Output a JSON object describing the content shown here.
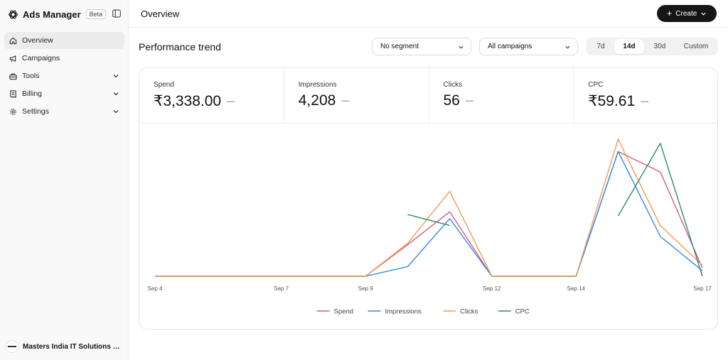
{
  "sidebar": {
    "brand": {
      "name": "Ads Manager",
      "badge": "Beta"
    },
    "items": [
      {
        "label": "Overview",
        "icon": "home-icon",
        "active": true,
        "expandable": false
      },
      {
        "label": "Campaigns",
        "icon": "megaphone-icon",
        "active": false,
        "expandable": false
      },
      {
        "label": "Tools",
        "icon": "toolbox-icon",
        "active": false,
        "expandable": true
      },
      {
        "label": "Billing",
        "icon": "receipt-icon",
        "active": false,
        "expandable": true
      },
      {
        "label": "Settings",
        "icon": "gear-icon",
        "active": false,
        "expandable": true
      }
    ],
    "org": {
      "name": "Masters India IT Solutions Pri..."
    }
  },
  "header": {
    "title": "Overview",
    "create_label": "Create"
  },
  "section": {
    "title": "Performance trend",
    "segment_select": "No segment",
    "campaign_select": "All campaigns",
    "ranges": [
      {
        "label": "7d",
        "active": false
      },
      {
        "label": "14d",
        "active": true
      },
      {
        "label": "30d",
        "active": false
      },
      {
        "label": "Custom",
        "active": false
      }
    ]
  },
  "metrics": [
    {
      "label": "Spend",
      "value": "₹3,338.00",
      "delta": "—"
    },
    {
      "label": "Impressions",
      "value": "4,208",
      "delta": "—"
    },
    {
      "label": "Clicks",
      "value": "56",
      "delta": "—"
    },
    {
      "label": "CPC",
      "value": "₹59.61",
      "delta": "—"
    }
  ],
  "colors": {
    "spend": "#d6588a",
    "impressions": "#2f8ae6",
    "clicks": "#f29a52",
    "cpc": "#2d8a64"
  },
  "chart_data": {
    "type": "line",
    "x": [
      "Sep 4",
      "Sep 5",
      "Sep 6",
      "Sep 7",
      "Sep 8",
      "Sep 9",
      "Sep 10",
      "Sep 11",
      "Sep 12",
      "Sep 13",
      "Sep 14",
      "Sep 15",
      "Sep 16",
      "Sep 17"
    ],
    "x_tick_labels": [
      "Sep 4",
      "Sep 7",
      "Sep 9",
      "Sep 12",
      "Sep 14",
      "Sep 17"
    ],
    "normalized": true,
    "ylim": [
      0,
      1
    ],
    "grid": false,
    "legend_position": "bottom",
    "series": [
      {
        "name": "Spend",
        "color_key": "spend",
        "values": [
          0,
          0,
          0,
          0,
          0,
          0,
          0.23,
          0.47,
          0,
          0,
          0,
          0.91,
          0.76,
          0.06
        ]
      },
      {
        "name": "Impressions",
        "color_key": "impressions",
        "values": [
          0,
          0,
          0,
          0,
          0,
          0,
          0.07,
          0.42,
          0,
          0,
          0,
          0.91,
          0.29,
          0.04
        ]
      },
      {
        "name": "Clicks",
        "color_key": "clicks",
        "values": [
          0,
          0,
          0,
          0,
          0,
          0,
          0.24,
          0.62,
          0,
          0,
          0,
          1.0,
          0.37,
          0.08
        ]
      },
      {
        "name": "CPC",
        "color_key": "cpc",
        "values": [
          null,
          null,
          null,
          null,
          null,
          null,
          0.45,
          0.37,
          null,
          null,
          null,
          0.44,
          0.97,
          0.0
        ]
      }
    ]
  }
}
